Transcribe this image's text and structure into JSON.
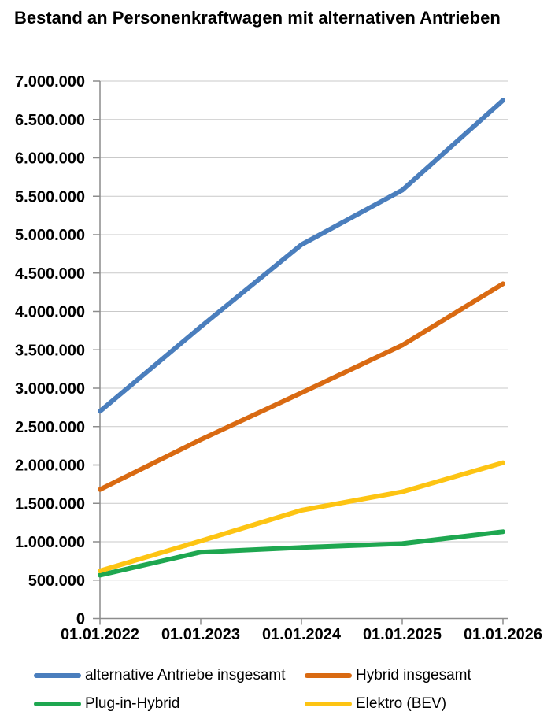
{
  "title": "Bestand an Personenkraftwagen mit alternativen Antrieben",
  "chart_data": {
    "type": "line",
    "title": "Bestand an Personenkraftwagen mit alternativen Antrieben",
    "categories": [
      "01.01.2022",
      "01.01.2023",
      "01.01.2024",
      "01.01.2025",
      "01.01.2026"
    ],
    "series": [
      {
        "name": "alternative Antriebe insgesamt",
        "color": "#4A7EBD",
        "values": [
          2700000,
          3800000,
          4870000,
          5580000,
          6750000
        ]
      },
      {
        "name": "Hybrid insgesamt",
        "color": "#D96A12",
        "values": [
          1680000,
          2330000,
          2940000,
          3560000,
          4360000
        ]
      },
      {
        "name": "Plug-in-Hybrid",
        "color": "#1EA750",
        "values": [
          565000,
          865000,
          925000,
          975000,
          1130000
        ]
      },
      {
        "name": "Elektro (BEV)",
        "color": "#FDC413",
        "values": [
          620000,
          1010000,
          1410000,
          1650000,
          2030000
        ]
      }
    ],
    "ylim": [
      0,
      7000000
    ],
    "y_tick_step": 500000,
    "y_tick_labels_top_to_bottom": [
      "7.000.000",
      "6.500.000",
      "6.000.000",
      "5.500.000",
      "5.000.000",
      "4.500.000",
      "4.000.000",
      "3.500.000",
      "3.000.000",
      "2.500.000",
      "2.000.000",
      "1.500.000",
      "1.000.000",
      "500.000",
      "0"
    ],
    "xlabel": "",
    "ylabel": "",
    "grid": "horizontal",
    "legend_position": "bottom"
  },
  "colors": {
    "background": "#FFFFFF",
    "grid": "#C9C9C9",
    "axis": "#8C8C8C",
    "text": "#000000"
  }
}
